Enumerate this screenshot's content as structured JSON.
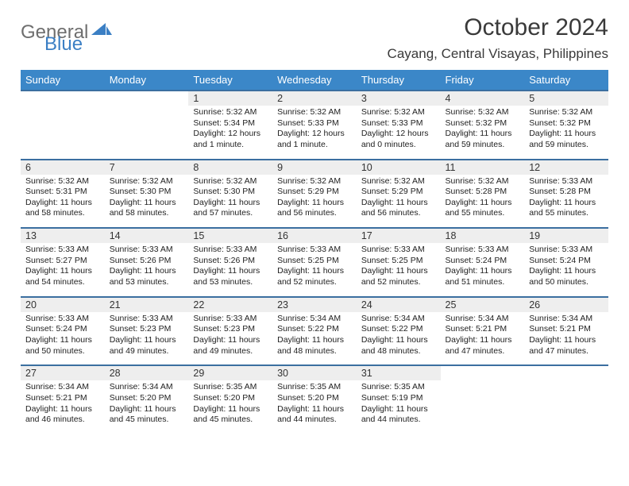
{
  "logo": {
    "text1": "General",
    "text2": "Blue"
  },
  "header": {
    "title": "October 2024",
    "location": "Cayang, Central Visayas, Philippines"
  },
  "colors": {
    "header_bg": "#3b87c8",
    "header_text": "#ffffff",
    "daynum_bg": "#eeeeee",
    "daynum_border": "#3b6fa0",
    "logo_gray": "#6e6e6e",
    "logo_blue": "#3b7fc4",
    "page_bg": "#ffffff",
    "body_text": "#222222"
  },
  "typography": {
    "title_fontsize": 30,
    "location_fontsize": 17,
    "dayhead_fontsize": 13,
    "daynum_fontsize": 12.5,
    "cell_fontsize": 10.5,
    "logo_fontsize": 24
  },
  "calendar": {
    "day_headers": [
      "Sunday",
      "Monday",
      "Tuesday",
      "Wednesday",
      "Thursday",
      "Friday",
      "Saturday"
    ],
    "weeks": [
      [
        null,
        null,
        {
          "n": "1",
          "sr": "Sunrise: 5:32 AM",
          "ss": "Sunset: 5:34 PM",
          "dl": "Daylight: 12 hours and 1 minute."
        },
        {
          "n": "2",
          "sr": "Sunrise: 5:32 AM",
          "ss": "Sunset: 5:33 PM",
          "dl": "Daylight: 12 hours and 1 minute."
        },
        {
          "n": "3",
          "sr": "Sunrise: 5:32 AM",
          "ss": "Sunset: 5:33 PM",
          "dl": "Daylight: 12 hours and 0 minutes."
        },
        {
          "n": "4",
          "sr": "Sunrise: 5:32 AM",
          "ss": "Sunset: 5:32 PM",
          "dl": "Daylight: 11 hours and 59 minutes."
        },
        {
          "n": "5",
          "sr": "Sunrise: 5:32 AM",
          "ss": "Sunset: 5:32 PM",
          "dl": "Daylight: 11 hours and 59 minutes."
        }
      ],
      [
        {
          "n": "6",
          "sr": "Sunrise: 5:32 AM",
          "ss": "Sunset: 5:31 PM",
          "dl": "Daylight: 11 hours and 58 minutes."
        },
        {
          "n": "7",
          "sr": "Sunrise: 5:32 AM",
          "ss": "Sunset: 5:30 PM",
          "dl": "Daylight: 11 hours and 58 minutes."
        },
        {
          "n": "8",
          "sr": "Sunrise: 5:32 AM",
          "ss": "Sunset: 5:30 PM",
          "dl": "Daylight: 11 hours and 57 minutes."
        },
        {
          "n": "9",
          "sr": "Sunrise: 5:32 AM",
          "ss": "Sunset: 5:29 PM",
          "dl": "Daylight: 11 hours and 56 minutes."
        },
        {
          "n": "10",
          "sr": "Sunrise: 5:32 AM",
          "ss": "Sunset: 5:29 PM",
          "dl": "Daylight: 11 hours and 56 minutes."
        },
        {
          "n": "11",
          "sr": "Sunrise: 5:32 AM",
          "ss": "Sunset: 5:28 PM",
          "dl": "Daylight: 11 hours and 55 minutes."
        },
        {
          "n": "12",
          "sr": "Sunrise: 5:33 AM",
          "ss": "Sunset: 5:28 PM",
          "dl": "Daylight: 11 hours and 55 minutes."
        }
      ],
      [
        {
          "n": "13",
          "sr": "Sunrise: 5:33 AM",
          "ss": "Sunset: 5:27 PM",
          "dl": "Daylight: 11 hours and 54 minutes."
        },
        {
          "n": "14",
          "sr": "Sunrise: 5:33 AM",
          "ss": "Sunset: 5:26 PM",
          "dl": "Daylight: 11 hours and 53 minutes."
        },
        {
          "n": "15",
          "sr": "Sunrise: 5:33 AM",
          "ss": "Sunset: 5:26 PM",
          "dl": "Daylight: 11 hours and 53 minutes."
        },
        {
          "n": "16",
          "sr": "Sunrise: 5:33 AM",
          "ss": "Sunset: 5:25 PM",
          "dl": "Daylight: 11 hours and 52 minutes."
        },
        {
          "n": "17",
          "sr": "Sunrise: 5:33 AM",
          "ss": "Sunset: 5:25 PM",
          "dl": "Daylight: 11 hours and 52 minutes."
        },
        {
          "n": "18",
          "sr": "Sunrise: 5:33 AM",
          "ss": "Sunset: 5:24 PM",
          "dl": "Daylight: 11 hours and 51 minutes."
        },
        {
          "n": "19",
          "sr": "Sunrise: 5:33 AM",
          "ss": "Sunset: 5:24 PM",
          "dl": "Daylight: 11 hours and 50 minutes."
        }
      ],
      [
        {
          "n": "20",
          "sr": "Sunrise: 5:33 AM",
          "ss": "Sunset: 5:24 PM",
          "dl": "Daylight: 11 hours and 50 minutes."
        },
        {
          "n": "21",
          "sr": "Sunrise: 5:33 AM",
          "ss": "Sunset: 5:23 PM",
          "dl": "Daylight: 11 hours and 49 minutes."
        },
        {
          "n": "22",
          "sr": "Sunrise: 5:33 AM",
          "ss": "Sunset: 5:23 PM",
          "dl": "Daylight: 11 hours and 49 minutes."
        },
        {
          "n": "23",
          "sr": "Sunrise: 5:34 AM",
          "ss": "Sunset: 5:22 PM",
          "dl": "Daylight: 11 hours and 48 minutes."
        },
        {
          "n": "24",
          "sr": "Sunrise: 5:34 AM",
          "ss": "Sunset: 5:22 PM",
          "dl": "Daylight: 11 hours and 48 minutes."
        },
        {
          "n": "25",
          "sr": "Sunrise: 5:34 AM",
          "ss": "Sunset: 5:21 PM",
          "dl": "Daylight: 11 hours and 47 minutes."
        },
        {
          "n": "26",
          "sr": "Sunrise: 5:34 AM",
          "ss": "Sunset: 5:21 PM",
          "dl": "Daylight: 11 hours and 47 minutes."
        }
      ],
      [
        {
          "n": "27",
          "sr": "Sunrise: 5:34 AM",
          "ss": "Sunset: 5:21 PM",
          "dl": "Daylight: 11 hours and 46 minutes."
        },
        {
          "n": "28",
          "sr": "Sunrise: 5:34 AM",
          "ss": "Sunset: 5:20 PM",
          "dl": "Daylight: 11 hours and 45 minutes."
        },
        {
          "n": "29",
          "sr": "Sunrise: 5:35 AM",
          "ss": "Sunset: 5:20 PM",
          "dl": "Daylight: 11 hours and 45 minutes."
        },
        {
          "n": "30",
          "sr": "Sunrise: 5:35 AM",
          "ss": "Sunset: 5:20 PM",
          "dl": "Daylight: 11 hours and 44 minutes."
        },
        {
          "n": "31",
          "sr": "Sunrise: 5:35 AM",
          "ss": "Sunset: 5:19 PM",
          "dl": "Daylight: 11 hours and 44 minutes."
        },
        null,
        null
      ]
    ]
  }
}
